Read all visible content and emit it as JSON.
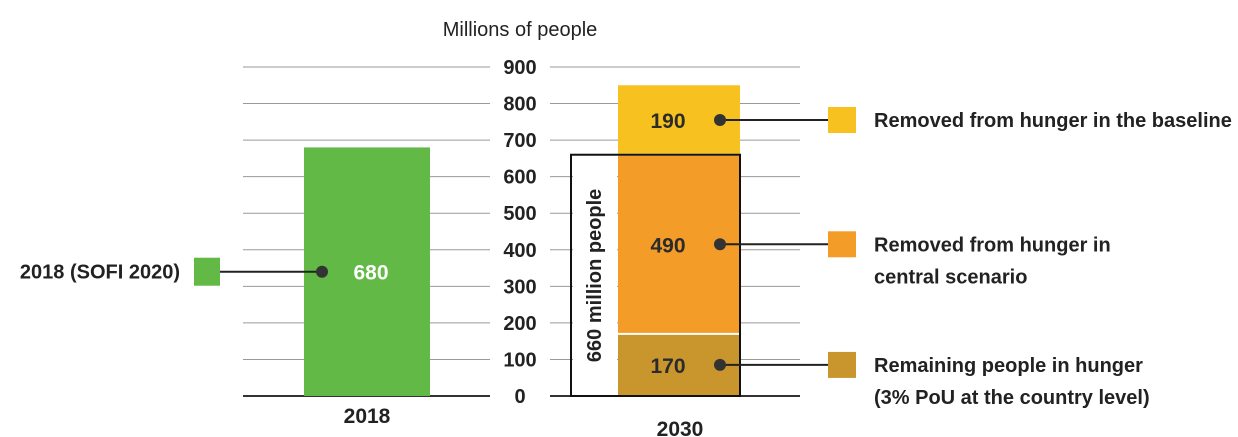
{
  "chart_data": {
    "type": "bar",
    "ylabel": "Millions of people",
    "ylim": [
      0,
      900
    ],
    "yticks": [
      0,
      100,
      200,
      300,
      400,
      500,
      600,
      700,
      800,
      900
    ],
    "grid": true,
    "categories": [
      "2018",
      "2030"
    ],
    "bars": [
      {
        "category": "2018",
        "segments": [
          {
            "name": "2018 (SOFI 2020)",
            "value": 680,
            "label": "680",
            "color": "#62b946"
          }
        ]
      },
      {
        "category": "2030",
        "segments": [
          {
            "name": "Remaining people in hunger (3% PoU at the country level)",
            "value": 170,
            "label": "170",
            "color": "#c9962e"
          },
          {
            "name": "Removed from hunger in central scenario",
            "value": 490,
            "label": "490",
            "color": "#f39c28"
          },
          {
            "name": "Removed from hunger in the baseline",
            "value": 190,
            "label": "190",
            "color": "#f7c11f"
          }
        ]
      }
    ],
    "annotation": {
      "text": "660 million people",
      "from": 0,
      "to": 660,
      "category": "2030"
    },
    "legend": [
      {
        "lines": [
          "2018 (SOFI 2020)"
        ],
        "color": "#62b946",
        "series": "2018 (SOFI 2020)"
      },
      {
        "lines": [
          "Removed from hunger in the baseline"
        ],
        "color": "#f7c11f",
        "series": "Removed from hunger in the baseline"
      },
      {
        "lines": [
          "Removed from hunger in",
          "central scenario"
        ],
        "color": "#f39c28",
        "series": "Removed from hunger in central scenario"
      },
      {
        "lines": [
          "Remaining people in hunger",
          "(3% PoU at the country level)"
        ],
        "color": "#c9962e",
        "series": "Remaining people in hunger (3% PoU at the country level)"
      }
    ]
  }
}
